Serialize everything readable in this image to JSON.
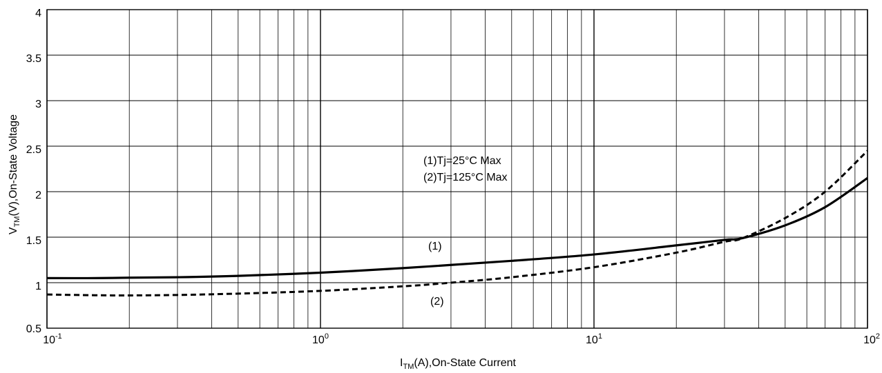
{
  "chart_data": {
    "type": "line",
    "title": "",
    "x_scale": "log",
    "xlim": [
      0.1,
      100
    ],
    "ylim": [
      0.5,
      4
    ],
    "grid": true,
    "ylabel": {
      "base": "V",
      "sub": "TM",
      "rest": "(V),On-State Voltage"
    },
    "xlabel": {
      "base": "I",
      "sub": "TM",
      "rest": "(A),On-State Current"
    },
    "x_ticks": [
      {
        "base": "10",
        "exp": "-1",
        "value": 0.1
      },
      {
        "base": "10",
        "exp": "0",
        "value": 1
      },
      {
        "base": "10",
        "exp": "1",
        "value": 10
      },
      {
        "base": "10",
        "exp": "2",
        "value": 100
      }
    ],
    "y_ticks": [
      "0.5",
      "1",
      "1.5",
      "2",
      "2.5",
      "3",
      "3.5",
      "4"
    ],
    "legend": [
      "(1)Tj=25°C Max",
      "(2)Tj=125°C Max"
    ],
    "series": [
      {
        "name": "(1)",
        "style": "solid",
        "x": [
          0.1,
          0.15,
          0.2,
          0.3,
          0.5,
          1,
          2,
          3,
          5,
          10,
          20,
          30,
          35,
          50,
          70,
          100
        ],
        "y": [
          1.05,
          1.05,
          1.055,
          1.06,
          1.075,
          1.11,
          1.16,
          1.195,
          1.24,
          1.31,
          1.41,
          1.47,
          1.49,
          1.63,
          1.83,
          2.15
        ]
      },
      {
        "name": "(2)",
        "style": "dashed",
        "x": [
          0.1,
          0.15,
          0.2,
          0.3,
          0.5,
          1,
          2,
          3,
          5,
          10,
          20,
          30,
          35,
          50,
          70,
          100
        ],
        "y": [
          0.87,
          0.862,
          0.86,
          0.865,
          0.88,
          0.91,
          0.96,
          1.0,
          1.06,
          1.17,
          1.33,
          1.45,
          1.49,
          1.71,
          2.0,
          2.45
        ]
      }
    ]
  },
  "colors": {
    "line": "#000000",
    "grid": "#000000",
    "background": "#ffffff"
  }
}
